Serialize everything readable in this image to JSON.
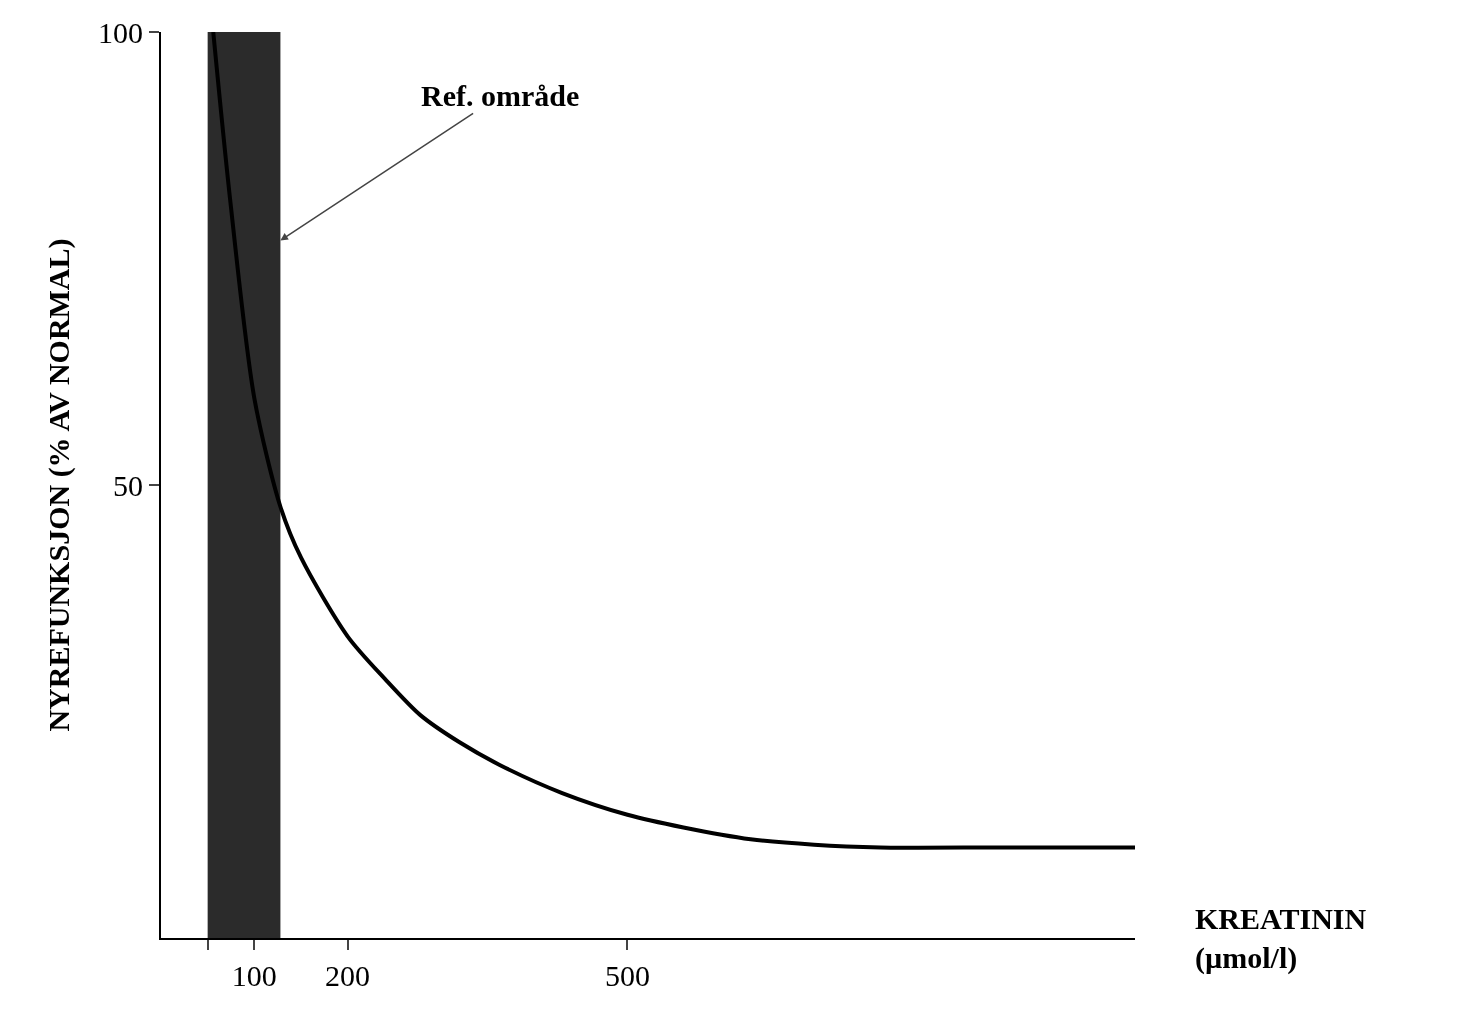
{
  "chart_data": {
    "type": "line",
    "xlabel": "KREATININ (µmol/l)",
    "ylabel": "NYREFUNKSJON (% AV NORMAL)",
    "x": [
      56,
      74,
      100,
      128,
      150,
      200,
      240,
      278,
      320,
      363,
      430,
      500,
      560,
      632,
      700,
      771,
      900,
      1044
    ],
    "series": [
      {
        "color": "#000000",
        "values": [
          100,
          81.6,
          59.6,
          47.6,
          42,
          33.3,
          28.6,
          24.6,
          21.6,
          19.1,
          16,
          13.6,
          12.2,
          10.9,
          10.3,
          10,
          10,
          10
        ]
      }
    ],
    "xlim": [
      0,
      1044
    ],
    "ylim": [
      0,
      100
    ],
    "xticks": [
      {
        "value": 50,
        "label": null
      },
      100,
      200,
      500
    ],
    "yticks": [
      50,
      100
    ],
    "bands": [
      {
        "axis": "x",
        "from": 50,
        "to": 128,
        "color": "#2b2b2b",
        "label": "Ref. område"
      }
    ],
    "grid": false,
    "marker": "none",
    "line_style": "solid"
  }
}
